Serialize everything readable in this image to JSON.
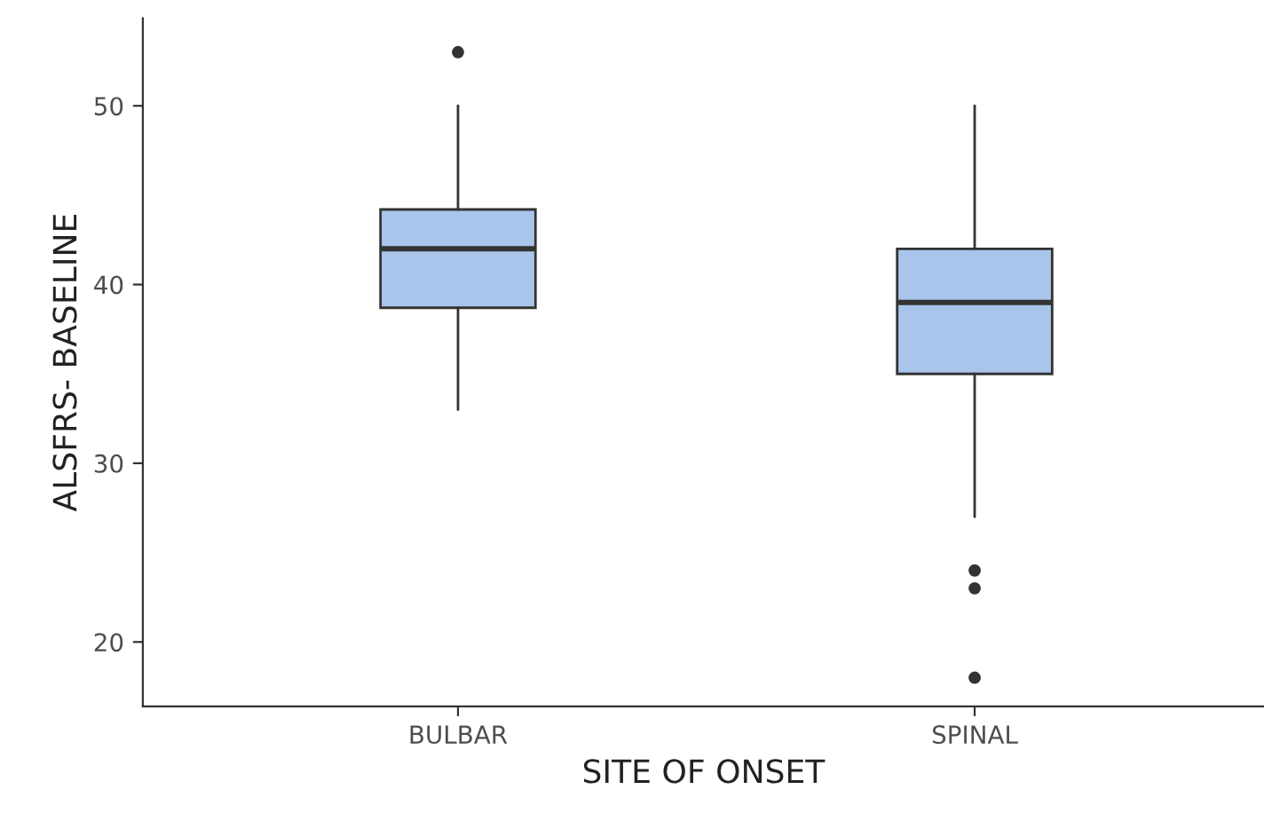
{
  "chart_data": {
    "type": "box",
    "xlabel": "SITE OF ONSET",
    "ylabel": "ALSFRS- BASELINE",
    "categories": [
      "BULBAR",
      "SPINAL"
    ],
    "boxes": [
      {
        "low": 33,
        "q1": 38.7,
        "median": 42,
        "q3": 44.2,
        "high": 50,
        "outliers": [
          53
        ]
      },
      {
        "low": 27,
        "q1": 35,
        "median": 39,
        "q3": 42,
        "high": 50,
        "outliers": [
          24,
          23,
          18
        ]
      }
    ],
    "color": "#a9c5ec",
    "ylim": [
      16.4,
      54.9
    ],
    "yticks": [
      20,
      30,
      40,
      50
    ],
    "grid": false
  }
}
